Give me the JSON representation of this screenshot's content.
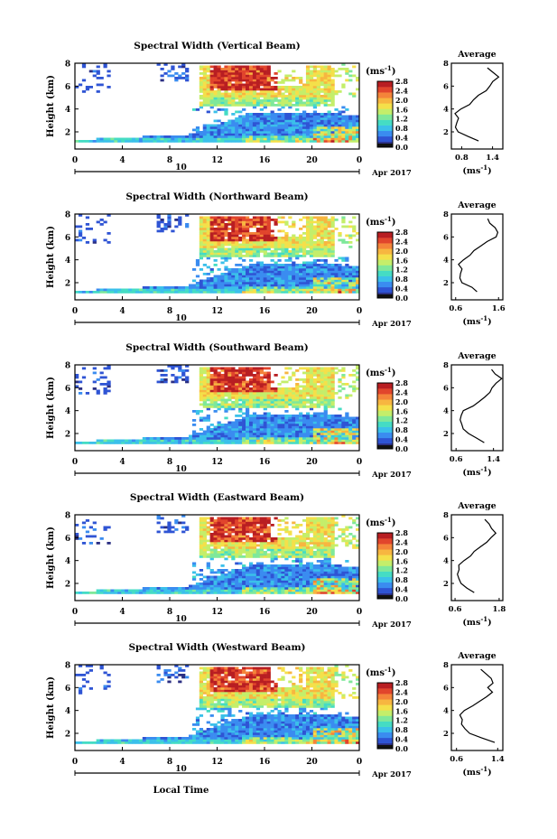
{
  "figure": {
    "xlabel": "Local Time",
    "date_label": "10",
    "month_label": "Apr 2017",
    "ylabel": "Height (km)",
    "colorbar_unit": "(ms",
    "colorbar_unit_sup": "-1",
    "colorbar_unit_close": ")",
    "avg_title": "Average",
    "avg_unit": "(ms",
    "avg_unit_sup": "-1",
    "avg_unit_close": ")"
  },
  "colors": {
    "colormap": [
      "#2b2f83",
      "#2f54d4",
      "#3a8cf0",
      "#3bc0ea",
      "#45dcc4",
      "#7fe89a",
      "#c4ee6a",
      "#f4e04a",
      "#f7b640",
      "#f4843a",
      "#e1452c",
      "#b81e22"
    ]
  },
  "chart_data": [
    {
      "type": "heatmap",
      "title": "Spectral Width (Vertical Beam)",
      "x_ticks": [
        "0",
        "4",
        "8",
        "12",
        "16",
        "20",
        "0"
      ],
      "xlim": [
        0,
        24
      ],
      "y_ticks": [
        "2",
        "4",
        "6",
        "8"
      ],
      "ylim": [
        0.5,
        8
      ],
      "colorbar_ticks": [
        "0.0",
        "0.4",
        "0.8",
        "1.2",
        "1.6",
        "2.0",
        "2.4",
        "2.8"
      ],
      "colorbar_range": [
        0.0,
        2.8
      ],
      "average_profile": {
        "x_ticks": [
          "0.8",
          "1.4"
        ],
        "xlim": [
          0.6,
          1.6
        ],
        "heights": [
          1.2,
          1.6,
          2.0,
          2.4,
          2.8,
          3.2,
          3.6,
          4.0,
          4.4,
          4.8,
          5.2,
          5.6,
          6.0,
          6.4,
          6.8,
          7.2,
          7.6
        ],
        "values": [
          1.1,
          0.95,
          0.72,
          0.7,
          0.68,
          0.72,
          0.7,
          0.8,
          0.95,
          1.05,
          1.15,
          1.25,
          1.32,
          1.42,
          1.5,
          1.38,
          1.3
        ]
      }
    },
    {
      "type": "heatmap",
      "title": "Spectral Width (Northward Beam)",
      "x_ticks": [
        "0",
        "4",
        "8",
        "12",
        "16",
        "20",
        "0"
      ],
      "xlim": [
        0,
        24
      ],
      "y_ticks": [
        "2",
        "4",
        "6",
        "8"
      ],
      "ylim": [
        0.5,
        8
      ],
      "colorbar_ticks": [
        "0.0",
        "0.4",
        "0.8",
        "1.2",
        "1.6",
        "2.0",
        "2.4",
        "2.8"
      ],
      "colorbar_range": [
        0.0,
        2.8
      ],
      "average_profile": {
        "x_ticks": [
          "0.6",
          "1.6"
        ],
        "xlim": [
          0.5,
          1.7
        ],
        "heights": [
          1.2,
          1.6,
          2.0,
          2.4,
          2.8,
          3.2,
          3.6,
          4.0,
          4.4,
          4.8,
          5.2,
          5.6,
          6.0,
          6.4,
          6.8,
          7.2,
          7.6
        ],
        "values": [
          1.1,
          0.95,
          0.75,
          0.72,
          0.7,
          0.72,
          0.68,
          0.78,
          0.92,
          1.05,
          1.2,
          1.35,
          1.52,
          1.6,
          1.5,
          1.4,
          1.32
        ]
      }
    },
    {
      "type": "heatmap",
      "title": "Spectral Width (Southward Beam)",
      "x_ticks": [
        "0",
        "4",
        "8",
        "12",
        "16",
        "20",
        "0"
      ],
      "xlim": [
        0,
        24
      ],
      "y_ticks": [
        "2",
        "4",
        "6",
        "8"
      ],
      "ylim": [
        0.5,
        8
      ],
      "colorbar_ticks": [
        "0.0",
        "0.4",
        "0.8",
        "1.2",
        "1.6",
        "2.0",
        "2.4",
        "2.8"
      ],
      "colorbar_range": [
        0.0,
        2.8
      ],
      "average_profile": {
        "x_ticks": [
          "0.6",
          "1.4"
        ],
        "xlim": [
          0.5,
          1.6
        ],
        "heights": [
          1.2,
          1.6,
          2.0,
          2.4,
          2.8,
          3.2,
          3.6,
          4.0,
          4.4,
          4.8,
          5.2,
          5.6,
          6.0,
          6.4,
          6.8,
          7.2,
          7.6
        ],
        "values": [
          1.2,
          1.05,
          0.85,
          0.78,
          0.72,
          0.66,
          0.7,
          0.78,
          0.95,
          1.1,
          1.2,
          1.3,
          1.38,
          1.48,
          1.55,
          1.45,
          1.35
        ]
      }
    },
    {
      "type": "heatmap",
      "title": "Spectral Width (Eastward Beam)",
      "x_ticks": [
        "0",
        "4",
        "8",
        "12",
        "16",
        "20",
        "0"
      ],
      "xlim": [
        0,
        24
      ],
      "y_ticks": [
        "2",
        "4",
        "6",
        "8"
      ],
      "ylim": [
        0.5,
        8
      ],
      "colorbar_ticks": [
        "0.0",
        "0.4",
        "0.8",
        "1.2",
        "1.6",
        "2.0",
        "2.4",
        "2.8"
      ],
      "colorbar_range": [
        0.0,
        2.8
      ],
      "average_profile": {
        "x_ticks": [
          "0.6",
          "1.8"
        ],
        "xlim": [
          0.5,
          1.9
        ],
        "heights": [
          1.2,
          1.6,
          2.0,
          2.4,
          2.8,
          3.2,
          3.6,
          4.0,
          4.4,
          4.8,
          5.2,
          5.6,
          6.0,
          6.4,
          6.8,
          7.2,
          7.6
        ],
        "values": [
          1.1,
          0.9,
          0.75,
          0.7,
          0.68,
          0.72,
          0.7,
          0.82,
          1.0,
          1.15,
          1.3,
          1.45,
          1.6,
          1.72,
          1.62,
          1.55,
          1.4
        ]
      }
    },
    {
      "type": "heatmap",
      "title": "Spectral Width (Westward Beam)",
      "x_ticks": [
        "0",
        "4",
        "8",
        "12",
        "16",
        "20",
        "0"
      ],
      "xlim": [
        0,
        24
      ],
      "y_ticks": [
        "2",
        "4",
        "6",
        "8"
      ],
      "ylim": [
        0.5,
        8
      ],
      "colorbar_ticks": [
        "0.0",
        "0.4",
        "0.8",
        "1.2",
        "1.6",
        "2.0",
        "2.4",
        "2.8"
      ],
      "colorbar_range": [
        0.0,
        2.8
      ],
      "average_profile": {
        "x_ticks": [
          "0.6",
          "1.4"
        ],
        "xlim": [
          0.5,
          1.5
        ],
        "heights": [
          1.2,
          1.6,
          2.0,
          2.4,
          2.8,
          3.2,
          3.6,
          4.0,
          4.4,
          4.8,
          5.2,
          5.6,
          6.0,
          6.4,
          6.8,
          7.2,
          7.6
        ],
        "values": [
          1.35,
          1.1,
          0.85,
          0.75,
          0.7,
          0.72,
          0.68,
          0.75,
          0.92,
          1.05,
          1.18,
          1.28,
          1.22,
          1.3,
          1.25,
          1.15,
          1.05
        ]
      }
    }
  ]
}
